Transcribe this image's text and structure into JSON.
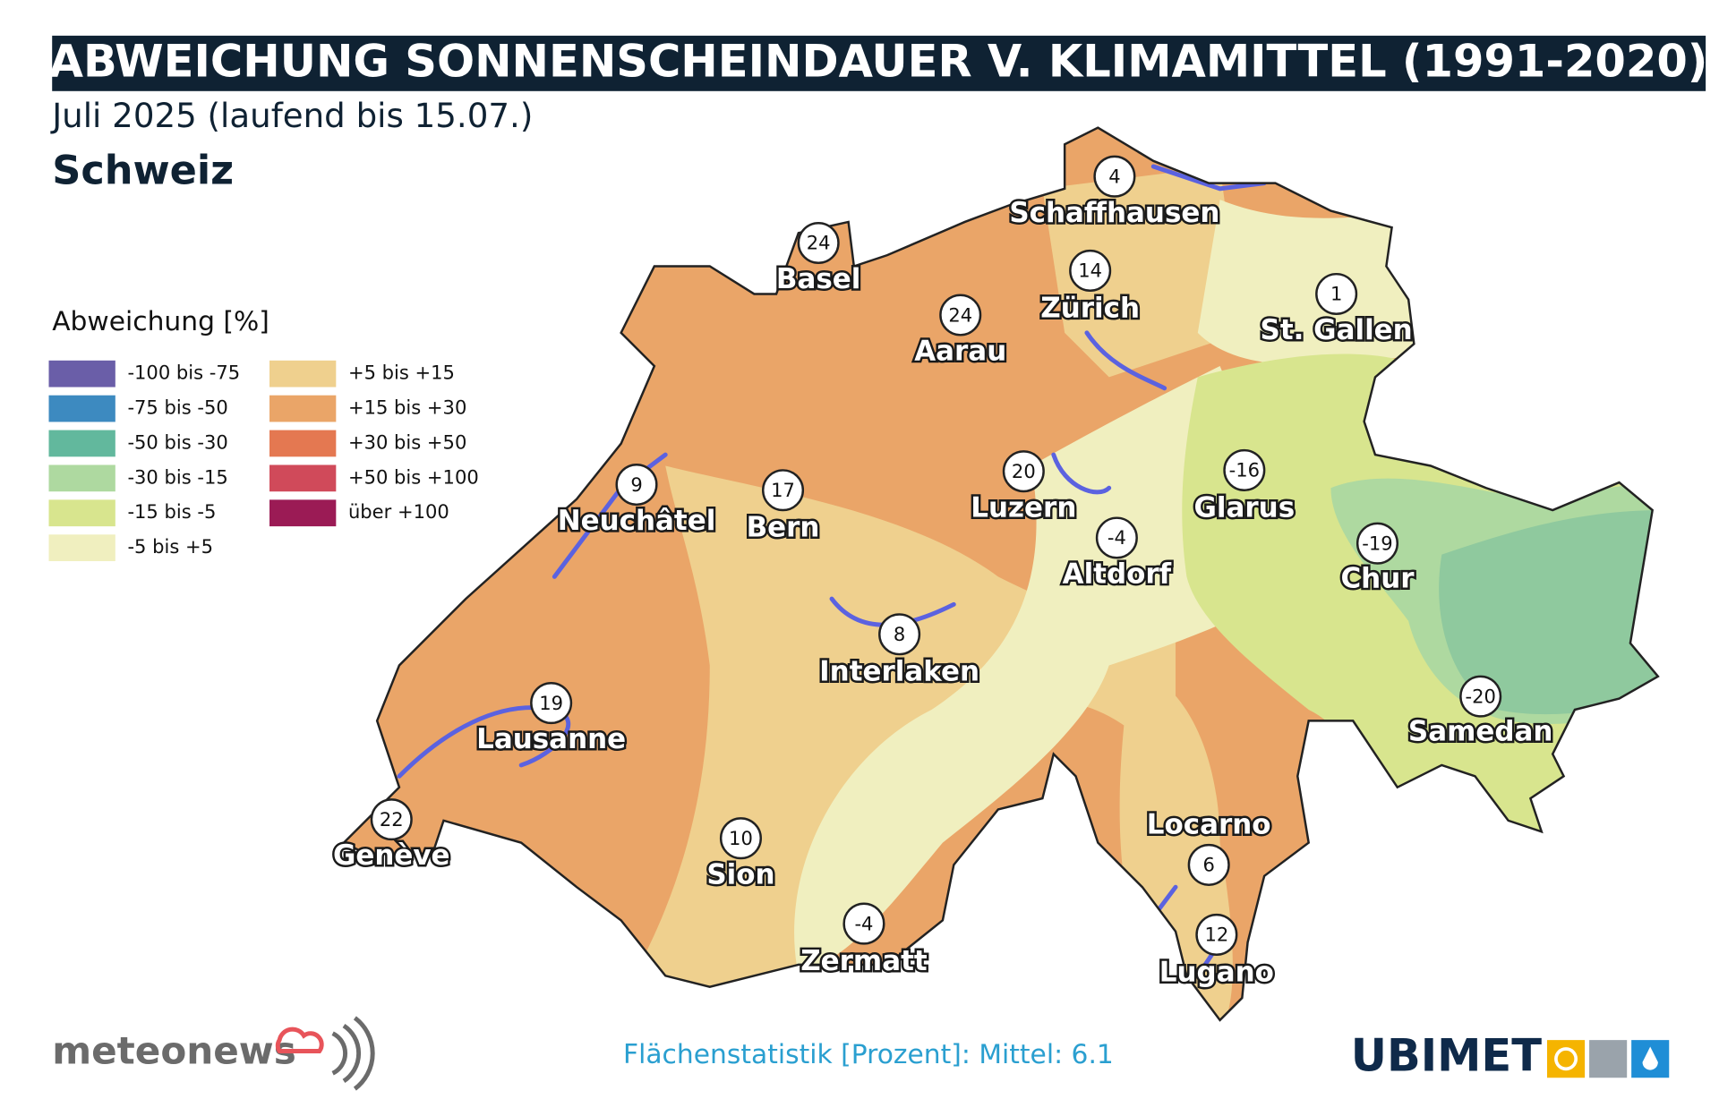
{
  "header": {
    "title": "ABWEICHUNG SONNENSCHEINDAUER V. KLIMAMITTEL (1991-2020)",
    "subtitle": "Juli 2025 (laufend bis 15.07.)",
    "region": "Schweiz"
  },
  "legend": {
    "title": "Abweichung [%]",
    "items": [
      {
        "label": "-100 bis -75",
        "color": "#6a5ea8"
      },
      {
        "label": "-75 bis -50",
        "color": "#3d8ac0"
      },
      {
        "label": "-50 bis -30",
        "color": "#62b89d"
      },
      {
        "label": "-30 bis -15",
        "color": "#aed9a0"
      },
      {
        "label": "-15 bis -5",
        "color": "#d8e58e"
      },
      {
        "label": "-5 bis +5",
        "color": "#f0efbf"
      },
      {
        "label": "+5 bis +15",
        "color": "#efd08e"
      },
      {
        "label": "+15 bis +30",
        "color": "#eaa568"
      },
      {
        "label": "+30 bis +50",
        "color": "#e47851"
      },
      {
        "label": "+50 bis +100",
        "color": "#d04a5a"
      },
      {
        "label": "über +100",
        "color": "#9b1b55"
      }
    ]
  },
  "cities": [
    {
      "name": "Schaffhausen",
      "value": 4
    },
    {
      "name": "Basel",
      "value": 24
    },
    {
      "name": "Zürich",
      "value": 14
    },
    {
      "name": "St. Gallen",
      "value": 1
    },
    {
      "name": "Aarau",
      "value": 24
    },
    {
      "name": "Neuchâtel",
      "value": 9
    },
    {
      "name": "Bern",
      "value": 17
    },
    {
      "name": "Luzern",
      "value": 20
    },
    {
      "name": "Glarus",
      "value": -16
    },
    {
      "name": "Altdorf",
      "value": -4
    },
    {
      "name": "Chur",
      "value": -19
    },
    {
      "name": "Interlaken",
      "value": 8
    },
    {
      "name": "Samedan",
      "value": -20
    },
    {
      "name": "Lausanne",
      "value": 19
    },
    {
      "name": "Genève",
      "value": 22
    },
    {
      "name": "Sion",
      "value": 10
    },
    {
      "name": "Locarno",
      "value": 6
    },
    {
      "name": "Zermatt",
      "value": -4
    },
    {
      "name": "Lugano",
      "value": 12
    }
  ],
  "footer": {
    "statistic": "Flächenstatistik [Prozent]: Mittel: 6.1",
    "logo_left": "meteonews",
    "logo_right": "UBIMET"
  }
}
